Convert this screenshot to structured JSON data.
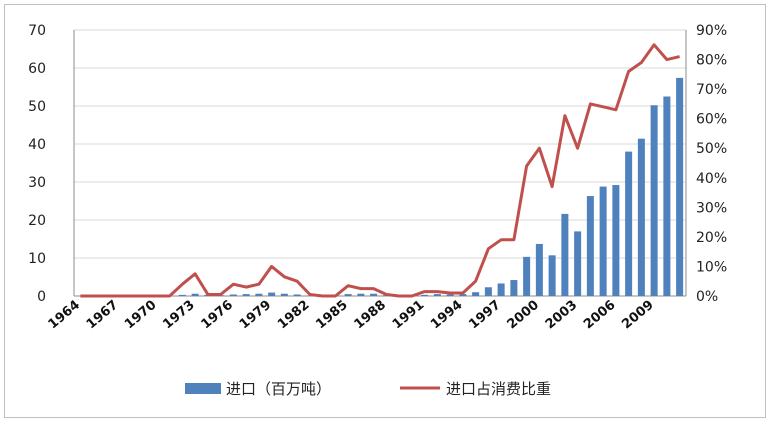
{
  "chart_data": {
    "type": "bar",
    "title": "",
    "x": [
      1964,
      1965,
      1966,
      1967,
      1968,
      1969,
      1970,
      1971,
      1972,
      1973,
      1974,
      1975,
      1976,
      1977,
      1978,
      1979,
      1980,
      1981,
      1982,
      1983,
      1984,
      1985,
      1986,
      1987,
      1988,
      1989,
      1990,
      1991,
      1992,
      1993,
      1994,
      1995,
      1996,
      1997,
      1998,
      1999,
      2000,
      2001,
      2002,
      2003,
      2004,
      2005,
      2006,
      2007,
      2008,
      2009,
      2010,
      2011
    ],
    "x_tick_labels": [
      "1964",
      "1967",
      "1970",
      "1973",
      "1976",
      "1979",
      "1982",
      "1985",
      "1988",
      "1991",
      "1994",
      "1997",
      "2000",
      "2003",
      "2006",
      "2009"
    ],
    "series": [
      {
        "name": "进口（百万吨）",
        "type": "bar",
        "axis": "left",
        "color": "#4f81bd",
        "values": [
          0,
          0,
          0,
          0,
          0,
          0,
          0,
          0,
          0.3,
          0.6,
          0.3,
          0.2,
          0.4,
          0.5,
          0.6,
          0.9,
          0.6,
          0.4,
          0.1,
          0.1,
          0.2,
          0.5,
          0.6,
          0.6,
          0.2,
          0.2,
          0.1,
          0.3,
          0.5,
          0.4,
          0.5,
          1.0,
          2.3,
          3.3,
          4.2,
          10.3,
          13.7,
          10.7,
          21.6,
          17.0,
          26.3,
          28.8,
          29.2,
          38.0,
          41.4,
          50.2,
          52.5,
          57.4
        ]
      },
      {
        "name": "进口占消费比重",
        "type": "line",
        "axis": "right",
        "color": "#c0504d",
        "values": [
          0,
          0,
          0,
          0,
          0,
          0,
          0,
          0,
          4,
          7.5,
          0.5,
          0.5,
          4,
          3,
          4,
          10,
          6.5,
          5,
          0.5,
          0,
          0,
          3.5,
          2.5,
          2.5,
          0.5,
          0,
          0,
          1.5,
          1.5,
          1,
          1,
          5,
          16,
          19,
          19,
          44,
          50,
          37,
          61,
          50,
          65,
          64,
          63,
          76,
          79,
          85,
          80,
          81
        ]
      }
    ],
    "y_left": {
      "ylim": [
        0,
        70
      ],
      "ticks": [
        "0",
        "10",
        "20",
        "30",
        "40",
        "50",
        "60",
        "70"
      ]
    },
    "y_right": {
      "ylim": [
        0,
        90
      ],
      "ticks": [
        "0%",
        "10%",
        "20%",
        "30%",
        "40%",
        "50%",
        "60%",
        "70%",
        "80%",
        "90%"
      ]
    },
    "xlabel": "",
    "ylabel": "",
    "grid": true,
    "legend_position": "bottom"
  }
}
